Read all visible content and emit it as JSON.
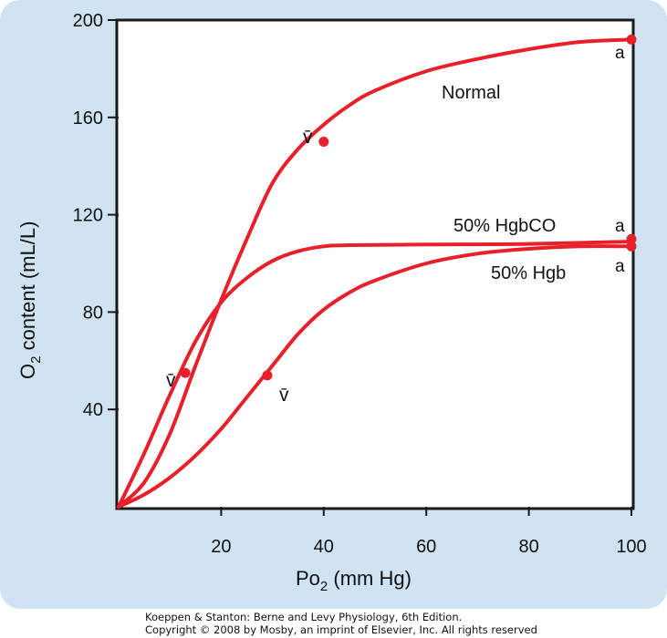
{
  "chart_data": {
    "type": "line",
    "x_range": [
      0,
      100
    ],
    "y_range": [
      0,
      200
    ],
    "x_ticks": [
      20,
      40,
      60,
      80,
      100
    ],
    "y_ticks": [
      40,
      80,
      120,
      160,
      200
    ],
    "ylabel": {
      "main": "O",
      "sub": "2",
      "rest": " content (mL/L)"
    },
    "xlabel": {
      "main": "Po",
      "sub": "2",
      "rest": " (mm Hg)"
    },
    "line_color": "#e8202a",
    "series": [
      {
        "name": "Normal",
        "points": [
          [
            0,
            0
          ],
          [
            5,
            10
          ],
          [
            10,
            30
          ],
          [
            15,
            58
          ],
          [
            20,
            85
          ],
          [
            25,
            110
          ],
          [
            30,
            133
          ],
          [
            35,
            147
          ],
          [
            40,
            157
          ],
          [
            45,
            165
          ],
          [
            50,
            171
          ],
          [
            60,
            179
          ],
          [
            70,
            184
          ],
          [
            80,
            188
          ],
          [
            90,
            191
          ],
          [
            100,
            192
          ]
        ],
        "markers": [
          {
            "x": 40,
            "y": 150,
            "label": "v̄"
          },
          {
            "x": 100,
            "y": 192,
            "label": "a"
          }
        ]
      },
      {
        "name": "50% HgbCO",
        "points": [
          [
            0,
            0
          ],
          [
            5,
            22
          ],
          [
            10,
            46
          ],
          [
            15,
            68
          ],
          [
            20,
            84
          ],
          [
            25,
            94
          ],
          [
            30,
            101
          ],
          [
            35,
            105
          ],
          [
            40,
            107
          ],
          [
            45,
            107.5
          ],
          [
            60,
            107.8
          ],
          [
            80,
            108
          ],
          [
            100,
            109
          ]
        ],
        "markers": [
          {
            "x": 13,
            "y": 55,
            "label": "v̄"
          },
          {
            "x": 100,
            "y": 110,
            "label": "a"
          }
        ]
      },
      {
        "name": "50% Hgb",
        "points": [
          [
            0,
            0
          ],
          [
            5,
            5
          ],
          [
            10,
            12
          ],
          [
            15,
            21
          ],
          [
            20,
            32
          ],
          [
            25,
            45
          ],
          [
            30,
            58
          ],
          [
            35,
            71
          ],
          [
            40,
            81
          ],
          [
            45,
            88
          ],
          [
            50,
            93
          ],
          [
            60,
            100
          ],
          [
            70,
            104
          ],
          [
            80,
            106
          ],
          [
            90,
            107
          ],
          [
            100,
            107
          ]
        ],
        "markers": [
          {
            "x": 29,
            "y": 54,
            "label": "v̄"
          },
          {
            "x": 100,
            "y": 107,
            "label": "a"
          }
        ]
      }
    ]
  },
  "credits": {
    "line1": "Koeppen & Stanton: Berne and Levy Physiology, 6th Edition.",
    "line2": "Copyright © 2008 by Mosby, an imprint of Elsevier, Inc. All rights reserved"
  }
}
